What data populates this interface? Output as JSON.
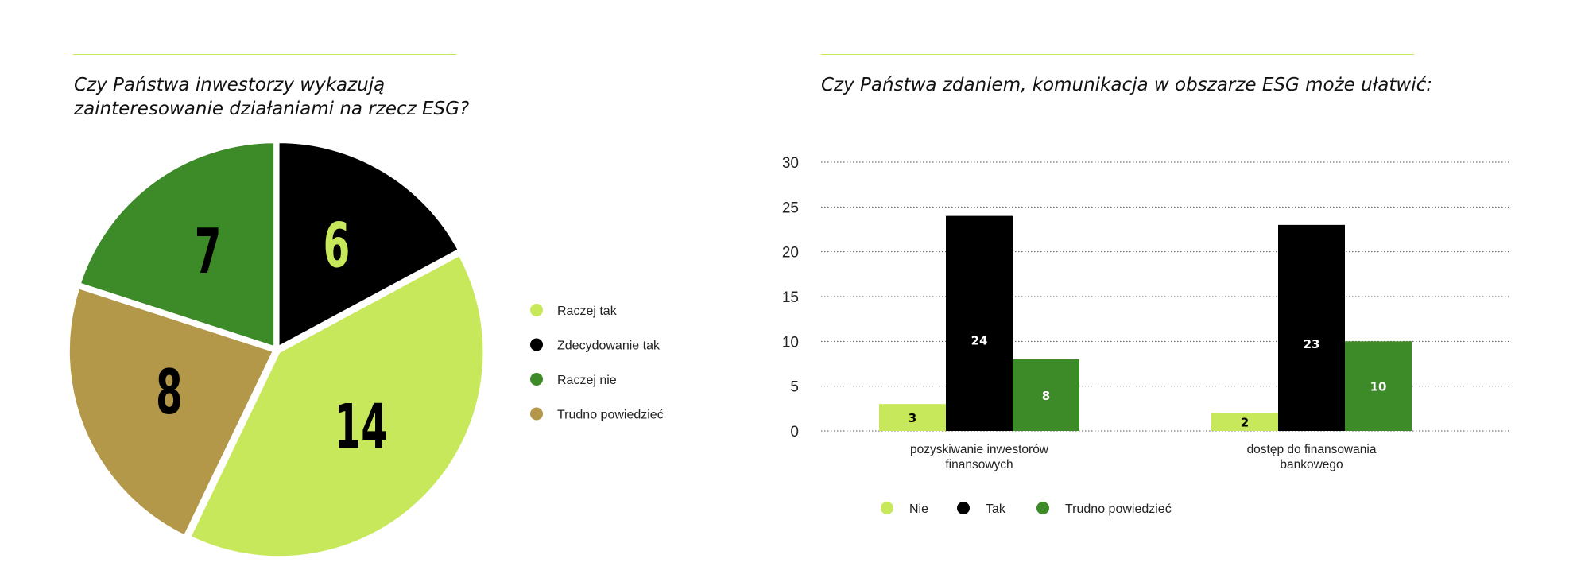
{
  "left_title": [
    "Czy Państwa inwestorzy wykazują",
    "zainteresowanie działaniami na rzecz ESG?"
  ],
  "right_title": "Czy Państwa zdaniem, komunikacja w obszarze ESG może ułatwić:",
  "chart_data": [
    {
      "type": "pie",
      "title": "Czy Państwa inwestorzy wykazują zainteresowanie działaniami na rzecz ESG?",
      "slices": [
        {
          "label": "Zdecydowanie tak",
          "value": 6,
          "color": "#000000",
          "label_color": "#c8e85c"
        },
        {
          "label": "Raczej tak",
          "value": 14,
          "color": "#c8e85c",
          "label_color": "#000000"
        },
        {
          "label": "Trudno powiedzieć",
          "value": 8,
          "color": "#b3984a",
          "label_color": "#000000"
        },
        {
          "label": "Raczej nie",
          "value": 7,
          "color": "#3c8a28",
          "label_color": "#000000"
        }
      ],
      "legend": {
        "placement": "right",
        "entries": [
          {
            "label": "Raczej tak",
            "color": "#c8e85c"
          },
          {
            "label": "Zdecydowanie tak",
            "color": "#000000"
          },
          {
            "label": "Raczej nie",
            "color": "#3c8a28"
          },
          {
            "label": "Trudno powiedzieć",
            "color": "#b3984a"
          }
        ]
      }
    },
    {
      "type": "bar",
      "title": "Czy Państwa zdaniem, komunikacja w obszarze ESG może ułatwić:",
      "categories": [
        [
          "pozyskiwanie inwestorów",
          "finansowych"
        ],
        [
          "dostęp do finansowania",
          "bankowego"
        ]
      ],
      "series": [
        {
          "name": "Nie",
          "values": [
            3,
            2
          ],
          "color": "#c8e85c",
          "label_color": "#000000"
        },
        {
          "name": "Tak",
          "values": [
            24,
            23
          ],
          "color": "#000000",
          "label_color": "#ffffff"
        },
        {
          "name": "Trudno powiedzieć",
          "values": [
            8,
            10
          ],
          "color": "#3c8a28",
          "label_color": "#ffffff"
        }
      ],
      "ylim": [
        0,
        30
      ],
      "yticks": [
        0,
        5,
        10,
        15,
        20,
        25,
        30
      ],
      "grid": "dotted horizontal",
      "legend_placement": "bottom"
    }
  ]
}
